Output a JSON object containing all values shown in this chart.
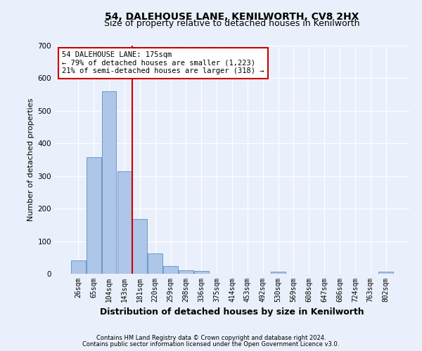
{
  "title": "54, DALEHOUSE LANE, KENILWORTH, CV8 2HX",
  "subtitle": "Size of property relative to detached houses in Kenilworth",
  "xlabel": "Distribution of detached houses by size in Kenilworth",
  "ylabel": "Number of detached properties",
  "footer_line1": "Contains HM Land Registry data © Crown copyright and database right 2024.",
  "footer_line2": "Contains public sector information licensed under the Open Government Licence v3.0.",
  "bin_labels": [
    "26sqm",
    "65sqm",
    "104sqm",
    "143sqm",
    "181sqm",
    "220sqm",
    "259sqm",
    "298sqm",
    "336sqm",
    "375sqm",
    "414sqm",
    "453sqm",
    "492sqm",
    "530sqm",
    "569sqm",
    "608sqm",
    "647sqm",
    "686sqm",
    "724sqm",
    "763sqm",
    "802sqm"
  ],
  "bar_heights": [
    40,
    357,
    560,
    315,
    168,
    62,
    23,
    11,
    8,
    0,
    0,
    0,
    0,
    6,
    0,
    0,
    0,
    0,
    0,
    0,
    6
  ],
  "bar_color": "#aec6e8",
  "bar_edgecolor": "#5a8fc0",
  "vline_x_index": 3.5,
  "vline_color": "#cc0000",
  "annotation_text": "54 DALEHOUSE LANE: 175sqm\n← 79% of detached houses are smaller (1,223)\n21% of semi-detached houses are larger (318) →",
  "annotation_box_color": "#ffffff",
  "annotation_box_edgecolor": "#cc0000",
  "ylim": [
    0,
    700
  ],
  "yticks": [
    0,
    100,
    200,
    300,
    400,
    500,
    600,
    700
  ],
  "background_color": "#eaf0fb",
  "plot_background": "#eaf0fb",
  "grid_color": "#ffffff",
  "title_fontsize": 10,
  "subtitle_fontsize": 9,
  "xlabel_fontsize": 9,
  "ylabel_fontsize": 8,
  "tick_fontsize": 7,
  "annotation_fontsize": 7.5,
  "footer_fontsize": 6
}
